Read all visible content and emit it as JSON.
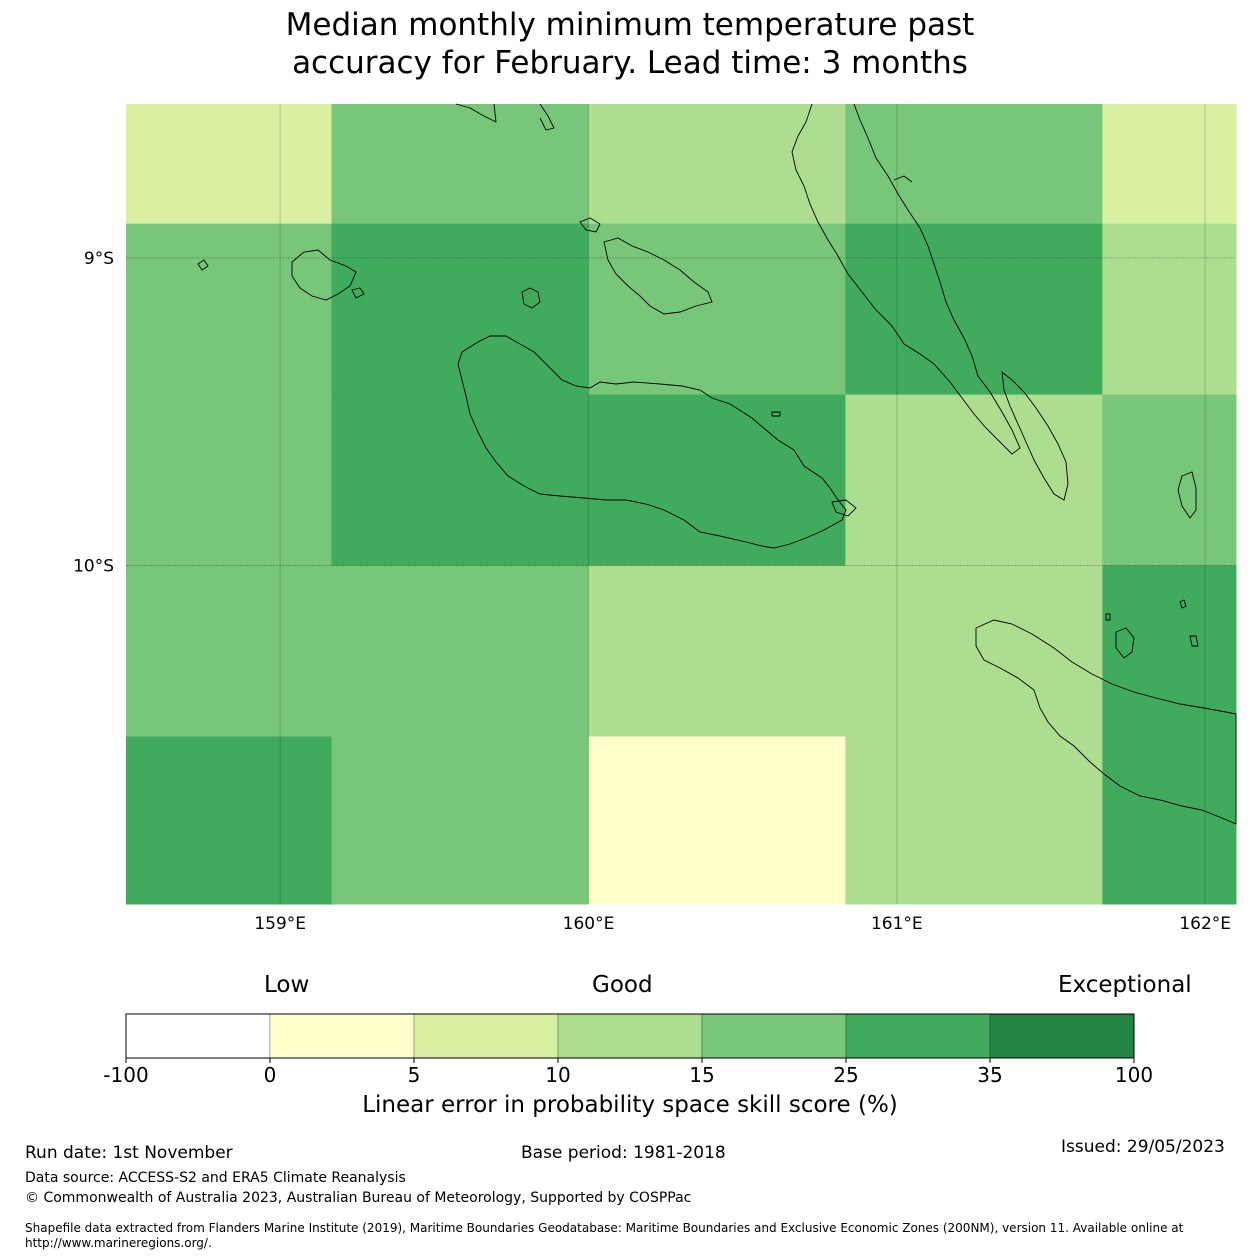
{
  "title_lines": [
    "Median monthly minimum temperature past",
    "accuracy for February. Lead time: 3 months"
  ],
  "map": {
    "lon_range": [
      158.5,
      162.1
    ],
    "lat_range": [
      -11.1,
      -8.5
    ],
    "lon_ticks": [
      {
        "value": 159,
        "label": "159°E"
      },
      {
        "value": 160,
        "label": "160°E"
      },
      {
        "value": 161,
        "label": "161°E"
      },
      {
        "value": 162,
        "label": "162°E"
      }
    ],
    "lat_ticks": [
      {
        "value": -9,
        "label": "9°S"
      },
      {
        "value": -10,
        "label": "10°S"
      }
    ],
    "grid_lon_edges": [
      158.5,
      159.1667,
      160.0,
      160.8333,
      161.6667,
      162.1
    ],
    "grid_lat_edges": [
      -8.5,
      -8.8889,
      -9.4444,
      -10.0,
      -10.5556,
      -11.1
    ],
    "cell_bins": [
      [
        2,
        4,
        3,
        4,
        2
      ],
      [
        4,
        5,
        4,
        5,
        3
      ],
      [
        4,
        5,
        5,
        3,
        4
      ],
      [
        4,
        4,
        3,
        3,
        5
      ],
      [
        5,
        4,
        1,
        3,
        5
      ]
    ]
  },
  "colorbar": {
    "category_labels": {
      "low": "Low",
      "good": "Good",
      "exceptional": "Exceptional"
    },
    "bins": [
      {
        "from": -100,
        "to": 0,
        "color": "#ffffff"
      },
      {
        "from": 0,
        "to": 5,
        "color": "#ffffcc"
      },
      {
        "from": 5,
        "to": 10,
        "color": "#d9f0a3"
      },
      {
        "from": 10,
        "to": 15,
        "color": "#addd8e"
      },
      {
        "from": 15,
        "to": 25,
        "color": "#78c679"
      },
      {
        "from": 25,
        "to": 35,
        "color": "#41ab5d"
      },
      {
        "from": 35,
        "to": 100,
        "color": "#238443"
      }
    ],
    "tick_labels": [
      "-100",
      "0",
      "5",
      "10",
      "15",
      "25",
      "35",
      "100"
    ],
    "title": "Linear error in probability space skill score (%)"
  },
  "footer": {
    "run_date": "Run date: 1st November",
    "base_period": "Base period: 1981-2018",
    "issued": "Issued: 29/05/2023",
    "data_source": "Data source: ACCESS-S2 and ERA5 Climate Reanalysis",
    "copyright": "© Commonwealth of Australia 2023, Australian Bureau of Meteorology, Supported by COSPPac",
    "shapefile_line1": "Shapefile data extracted from Flanders Marine Institute (2019), Maritime Boundaries Geodatabase: Maritime Boundaries and Exclusive Economic Zones (200NM), version 11. Available online at",
    "shapefile_line2": "http://www.marineregions.org/."
  }
}
